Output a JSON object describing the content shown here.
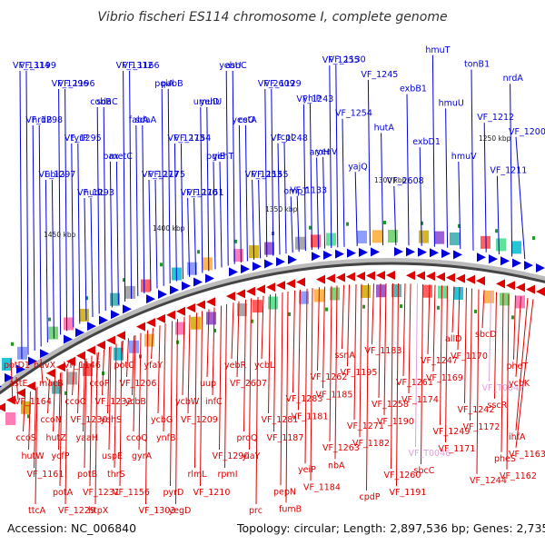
{
  "title": "Vibrio fischeri ES114 chromosome I, complete genome",
  "accession": "Accession: NC_006840",
  "topology": "Topology: circular; Length: 2,897,536 bp; Genes: 2,735",
  "colors": {
    "forward": "#0000dd",
    "reverse": "#dd0000",
    "pseudo": "#dda0dd",
    "backbone": "#444444",
    "marker": "#229922"
  },
  "kbp_labels": [
    "1450 kbp",
    "1400 kbp",
    "1350 kbp",
    "1300 kbp",
    "1250 kbp"
  ],
  "forward_genes": [
    "VF_1314",
    "VF_1298",
    "VF_1297",
    "VF_1296",
    "VF_1295",
    "VF_1293",
    "cobB",
    "bax",
    "VF_1312",
    "fabA",
    "VF_1277",
    "pqiA",
    "VF_1273",
    "VF_1270",
    "umuD",
    "pqiB",
    "yebU",
    "yeeO",
    "VF_1253",
    "VF_2609",
    "VF_1248",
    "ompT",
    "VF_1243",
    "aroH",
    "VF_1255",
    "VF_1254",
    "yajQ",
    "VF_1245",
    "hutA",
    "VF_2608",
    "exbB1",
    "exbD1",
    "hmuT",
    "hmuU",
    "hmuV",
    "tonB1",
    "VF_1212",
    "VF_1211",
    "nrdA",
    "VF_1200",
    "VF_1199",
    "nrdB",
    "ubiG",
    "VF_1196",
    "tyrP",
    "nudL",
    "sdaC",
    "metC",
    "VF_1166",
    "sdaA",
    "VF_1175",
    "pabB",
    "VF_1154",
    "VF_1151",
    "yehU",
    "yehT",
    "asnC",
    "cstA",
    "VF_1155",
    "VF_1129",
    "tcpI",
    "VF_1133",
    "yhiP",
    "yeaV",
    "VF_1130"
  ],
  "reverse_genes": [
    "potD1",
    "ccoS",
    "ttcA",
    "ccoN",
    "potA",
    "ccoO",
    "potB",
    "ccoP",
    "uspE",
    "potC",
    "ccoQ",
    "VF_1303",
    "ycbG",
    "pyrD",
    "ycbW",
    "rlmL",
    "uup",
    "VF_1290",
    "yebR",
    "proQ",
    "prc",
    "VF_1281",
    "pepN",
    "VF_1283",
    "yeiP",
    "VF_1262",
    "VF_1263",
    "ssnA",
    "VF_1271",
    "cpdP",
    "VF_1258",
    "VF_1260",
    "VF_1261",
    "VF_T0046",
    "VF_1247",
    "VF_1249",
    "allD",
    "VF_1242",
    "VF_1244",
    "VF_T0047",
    "pheS",
    "pheT",
    "ihfA",
    "astE",
    "hutW",
    "huvX",
    "hutZ",
    "VF_1229",
    "VF_1230",
    "VF_1231",
    "VF_1232",
    "thrS",
    "VF_1206",
    "gyrA",
    "yfaY",
    "ynfB",
    "yegD",
    "VF_1209",
    "VF_1210",
    "infC",
    "rpmI",
    "VF_2607",
    "yiaY",
    "ycbL",
    "VF_1187",
    "fumB",
    "VF_1181",
    "VF_1184",
    "VF_1185",
    "nbA",
    "VF_1195",
    "VF_1182",
    "VF_1183",
    "VF_1190",
    "VF_1191",
    "VF_1174",
    "sbcC",
    "VF_1169",
    "VF_1171",
    "VF_1170",
    "VF_1172",
    "sbcD",
    "sscR",
    "VF_1162",
    "ycbK",
    "VF_1163",
    "VF_1164",
    "VF_1161",
    "macB",
    "ycfP",
    "VF_1146",
    "yaaH",
    "htpX",
    "yehS",
    "VF_1156",
    "ycbB"
  ]
}
